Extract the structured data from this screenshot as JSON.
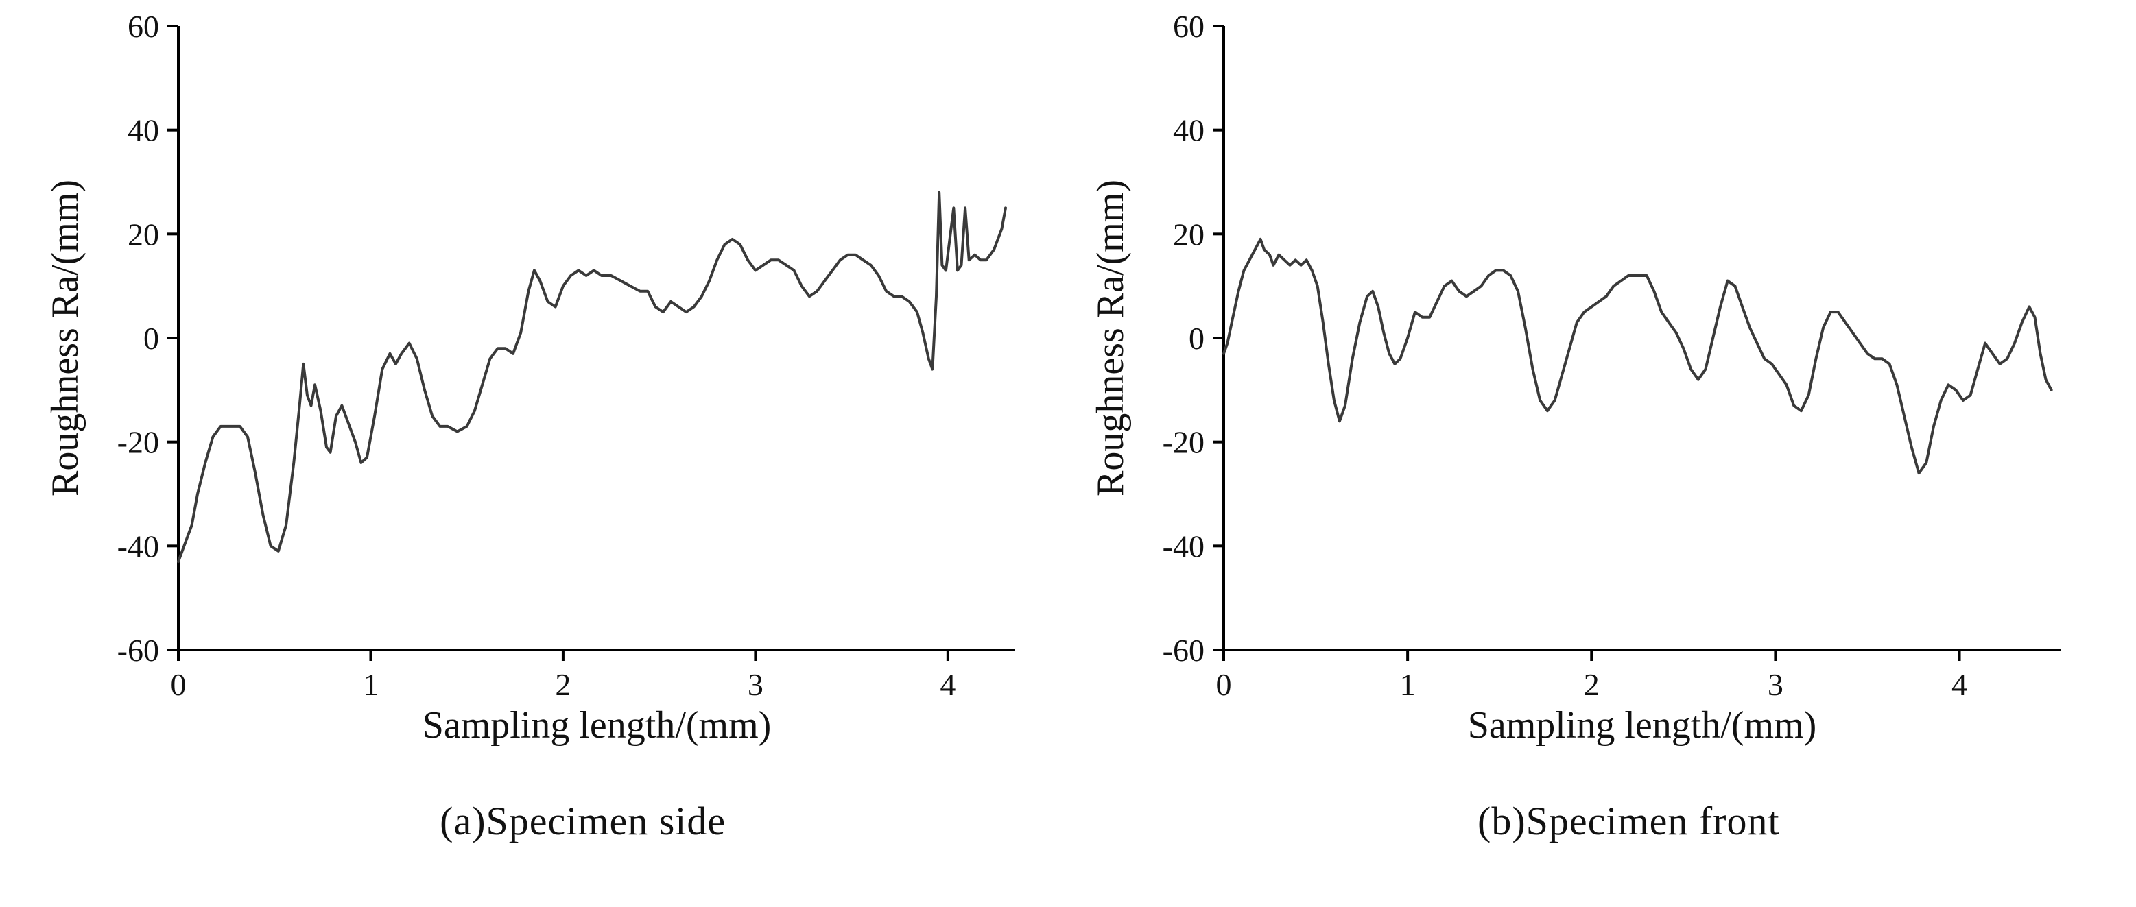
{
  "chart_data": [
    {
      "type": "line",
      "caption": "(a)Specimen side",
      "xlabel": "Sampling length/(mm)",
      "ylabel": "Roughness Ra/(mm)",
      "xlim": [
        0,
        4.35
      ],
      "ylim": [
        -60,
        60
      ],
      "x_ticks": [
        0,
        1,
        2,
        3,
        4
      ],
      "y_ticks": [
        -60,
        -40,
        -20,
        0,
        20,
        40,
        60
      ],
      "line_color": "#3a3a3a",
      "points": [
        [
          0,
          -43
        ],
        [
          0.03,
          -40
        ],
        [
          0.07,
          -36
        ],
        [
          0.1,
          -30
        ],
        [
          0.14,
          -24
        ],
        [
          0.18,
          -19
        ],
        [
          0.22,
          -17
        ],
        [
          0.27,
          -17
        ],
        [
          0.32,
          -17
        ],
        [
          0.36,
          -19
        ],
        [
          0.4,
          -26
        ],
        [
          0.44,
          -34
        ],
        [
          0.48,
          -40
        ],
        [
          0.52,
          -41
        ],
        [
          0.56,
          -36
        ],
        [
          0.6,
          -24
        ],
        [
          0.63,
          -13
        ],
        [
          0.65,
          -5
        ],
        [
          0.67,
          -11
        ],
        [
          0.69,
          -13
        ],
        [
          0.71,
          -9
        ],
        [
          0.74,
          -14
        ],
        [
          0.77,
          -21
        ],
        [
          0.79,
          -22
        ],
        [
          0.82,
          -15
        ],
        [
          0.85,
          -13
        ],
        [
          0.88,
          -16
        ],
        [
          0.92,
          -20
        ],
        [
          0.95,
          -24
        ],
        [
          0.98,
          -23
        ],
        [
          1.02,
          -15
        ],
        [
          1.06,
          -6
        ],
        [
          1.1,
          -3
        ],
        [
          1.13,
          -5
        ],
        [
          1.16,
          -3
        ],
        [
          1.2,
          -1
        ],
        [
          1.24,
          -4
        ],
        [
          1.28,
          -10
        ],
        [
          1.32,
          -15
        ],
        [
          1.36,
          -17
        ],
        [
          1.4,
          -17
        ],
        [
          1.45,
          -18
        ],
        [
          1.5,
          -17
        ],
        [
          1.54,
          -14
        ],
        [
          1.58,
          -9
        ],
        [
          1.62,
          -4
        ],
        [
          1.66,
          -2
        ],
        [
          1.7,
          -2
        ],
        [
          1.74,
          -3
        ],
        [
          1.78,
          1
        ],
        [
          1.82,
          9
        ],
        [
          1.85,
          13
        ],
        [
          1.88,
          11
        ],
        [
          1.92,
          7
        ],
        [
          1.96,
          6
        ],
        [
          2.0,
          10
        ],
        [
          2.04,
          12
        ],
        [
          2.08,
          13
        ],
        [
          2.12,
          12
        ],
        [
          2.16,
          13
        ],
        [
          2.2,
          12
        ],
        [
          2.25,
          12
        ],
        [
          2.3,
          11
        ],
        [
          2.35,
          10
        ],
        [
          2.4,
          9
        ],
        [
          2.44,
          9
        ],
        [
          2.48,
          6
        ],
        [
          2.52,
          5
        ],
        [
          2.56,
          7
        ],
        [
          2.6,
          6
        ],
        [
          2.64,
          5
        ],
        [
          2.68,
          6
        ],
        [
          2.72,
          8
        ],
        [
          2.76,
          11
        ],
        [
          2.8,
          15
        ],
        [
          2.84,
          18
        ],
        [
          2.88,
          19
        ],
        [
          2.92,
          18
        ],
        [
          2.96,
          15
        ],
        [
          3.0,
          13
        ],
        [
          3.04,
          14
        ],
        [
          3.08,
          15
        ],
        [
          3.12,
          15
        ],
        [
          3.16,
          14
        ],
        [
          3.2,
          13
        ],
        [
          3.24,
          10
        ],
        [
          3.28,
          8
        ],
        [
          3.32,
          9
        ],
        [
          3.36,
          11
        ],
        [
          3.4,
          13
        ],
        [
          3.44,
          15
        ],
        [
          3.48,
          16
        ],
        [
          3.52,
          16
        ],
        [
          3.56,
          15
        ],
        [
          3.6,
          14
        ],
        [
          3.64,
          12
        ],
        [
          3.68,
          9
        ],
        [
          3.72,
          8
        ],
        [
          3.76,
          8
        ],
        [
          3.8,
          7
        ],
        [
          3.84,
          5
        ],
        [
          3.87,
          1
        ],
        [
          3.9,
          -4
        ],
        [
          3.92,
          -6
        ],
        [
          3.94,
          8
        ],
        [
          3.955,
          28
        ],
        [
          3.97,
          14
        ],
        [
          3.99,
          13
        ],
        [
          4.01,
          19
        ],
        [
          4.03,
          25
        ],
        [
          4.05,
          13
        ],
        [
          4.07,
          14
        ],
        [
          4.09,
          25
        ],
        [
          4.11,
          15
        ],
        [
          4.14,
          16
        ],
        [
          4.17,
          15
        ],
        [
          4.2,
          15
        ],
        [
          4.24,
          17
        ],
        [
          4.28,
          21
        ],
        [
          4.3,
          25
        ]
      ]
    },
    {
      "type": "line",
      "caption": "(b)Specimen front",
      "xlabel": "Sampling length/(mm)",
      "ylabel": "Roughness Ra/(mm)",
      "xlim": [
        0,
        4.55
      ],
      "ylim": [
        -60,
        60
      ],
      "x_ticks": [
        0,
        1,
        2,
        3,
        4
      ],
      "y_ticks": [
        -60,
        -40,
        -20,
        0,
        20,
        40,
        60
      ],
      "line_color": "#3a3a3a",
      "points": [
        [
          0,
          -3
        ],
        [
          0.02,
          -1
        ],
        [
          0.05,
          4
        ],
        [
          0.08,
          9
        ],
        [
          0.11,
          13
        ],
        [
          0.14,
          15
        ],
        [
          0.17,
          17
        ],
        [
          0.2,
          19
        ],
        [
          0.22,
          17
        ],
        [
          0.25,
          16
        ],
        [
          0.27,
          14
        ],
        [
          0.3,
          16
        ],
        [
          0.33,
          15
        ],
        [
          0.36,
          14
        ],
        [
          0.39,
          15
        ],
        [
          0.42,
          14
        ],
        [
          0.45,
          15
        ],
        [
          0.48,
          13
        ],
        [
          0.51,
          10
        ],
        [
          0.54,
          3
        ],
        [
          0.57,
          -5
        ],
        [
          0.6,
          -12
        ],
        [
          0.63,
          -16
        ],
        [
          0.66,
          -13
        ],
        [
          0.7,
          -4
        ],
        [
          0.74,
          3
        ],
        [
          0.78,
          8
        ],
        [
          0.81,
          9
        ],
        [
          0.84,
          6
        ],
        [
          0.87,
          1
        ],
        [
          0.9,
          -3
        ],
        [
          0.93,
          -5
        ],
        [
          0.96,
          -4
        ],
        [
          1.0,
          0
        ],
        [
          1.04,
          5
        ],
        [
          1.08,
          4
        ],
        [
          1.12,
          4
        ],
        [
          1.16,
          7
        ],
        [
          1.2,
          10
        ],
        [
          1.24,
          11
        ],
        [
          1.28,
          9
        ],
        [
          1.32,
          8
        ],
        [
          1.36,
          9
        ],
        [
          1.4,
          10
        ],
        [
          1.44,
          12
        ],
        [
          1.48,
          13
        ],
        [
          1.52,
          13
        ],
        [
          1.56,
          12
        ],
        [
          1.6,
          9
        ],
        [
          1.64,
          2
        ],
        [
          1.68,
          -6
        ],
        [
          1.72,
          -12
        ],
        [
          1.76,
          -14
        ],
        [
          1.8,
          -12
        ],
        [
          1.84,
          -7
        ],
        [
          1.88,
          -2
        ],
        [
          1.92,
          3
        ],
        [
          1.96,
          5
        ],
        [
          2.0,
          6
        ],
        [
          2.04,
          7
        ],
        [
          2.08,
          8
        ],
        [
          2.12,
          10
        ],
        [
          2.16,
          11
        ],
        [
          2.2,
          12
        ],
        [
          2.25,
          12
        ],
        [
          2.3,
          12
        ],
        [
          2.34,
          9
        ],
        [
          2.38,
          5
        ],
        [
          2.42,
          3
        ],
        [
          2.46,
          1
        ],
        [
          2.5,
          -2
        ],
        [
          2.54,
          -6
        ],
        [
          2.58,
          -8
        ],
        [
          2.62,
          -6
        ],
        [
          2.66,
          0
        ],
        [
          2.7,
          6
        ],
        [
          2.74,
          11
        ],
        [
          2.78,
          10
        ],
        [
          2.82,
          6
        ],
        [
          2.86,
          2
        ],
        [
          2.9,
          -1
        ],
        [
          2.94,
          -4
        ],
        [
          2.98,
          -5
        ],
        [
          3.02,
          -7
        ],
        [
          3.06,
          -9
        ],
        [
          3.1,
          -13
        ],
        [
          3.14,
          -14
        ],
        [
          3.18,
          -11
        ],
        [
          3.22,
          -4
        ],
        [
          3.26,
          2
        ],
        [
          3.3,
          5
        ],
        [
          3.34,
          5
        ],
        [
          3.38,
          3
        ],
        [
          3.42,
          1
        ],
        [
          3.46,
          -1
        ],
        [
          3.5,
          -3
        ],
        [
          3.54,
          -4
        ],
        [
          3.58,
          -4
        ],
        [
          3.62,
          -5
        ],
        [
          3.66,
          -9
        ],
        [
          3.7,
          -15
        ],
        [
          3.74,
          -21
        ],
        [
          3.78,
          -26
        ],
        [
          3.82,
          -24
        ],
        [
          3.86,
          -17
        ],
        [
          3.9,
          -12
        ],
        [
          3.94,
          -9
        ],
        [
          3.98,
          -10
        ],
        [
          4.02,
          -12
        ],
        [
          4.06,
          -11
        ],
        [
          4.1,
          -6
        ],
        [
          4.14,
          -1
        ],
        [
          4.18,
          -3
        ],
        [
          4.22,
          -5
        ],
        [
          4.26,
          -4
        ],
        [
          4.3,
          -1
        ],
        [
          4.34,
          3
        ],
        [
          4.38,
          6
        ],
        [
          4.41,
          4
        ],
        [
          4.44,
          -3
        ],
        [
          4.47,
          -8
        ],
        [
          4.5,
          -10
        ]
      ]
    }
  ]
}
